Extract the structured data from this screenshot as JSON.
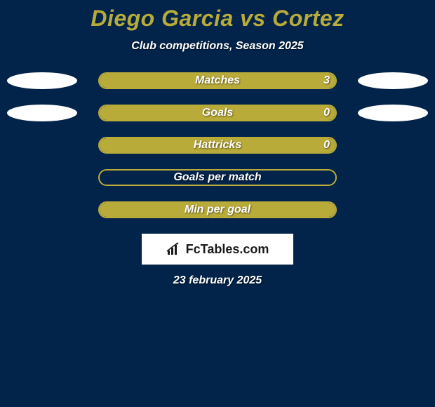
{
  "colors": {
    "background": "#02244a",
    "title": "#b9ab39",
    "text_white": "#ffffff",
    "bar_fill": "#b9ab39",
    "bar_border": "#b9ab39",
    "ellipse": "#ffffff",
    "logo_bg": "#ffffff",
    "logo_text": "#1a1a1a"
  },
  "title": "Diego Garcia vs Cortez",
  "subtitle": "Club competitions, Season 2025",
  "date": "23 february 2025",
  "logo": {
    "text_bold": "Fc",
    "text_rest": "Tables.com"
  },
  "layout": {
    "bar_track_width": 340,
    "bar_track_height": 24,
    "ellipse_width": 100,
    "ellipse_height": 24,
    "row_gap": 22
  },
  "rows": [
    {
      "label": "Matches",
      "left_value": "",
      "right_value": "3",
      "show_left_ellipse": true,
      "show_right_ellipse": true,
      "fill_left_pct": 0,
      "fill_right_pct": 100
    },
    {
      "label": "Goals",
      "left_value": "",
      "right_value": "0",
      "show_left_ellipse": true,
      "show_right_ellipse": true,
      "fill_left_pct": 0,
      "fill_right_pct": 100
    },
    {
      "label": "Hattricks",
      "left_value": "",
      "right_value": "0",
      "show_left_ellipse": false,
      "show_right_ellipse": false,
      "fill_left_pct": 0,
      "fill_right_pct": 100
    },
    {
      "label": "Goals per match",
      "left_value": "",
      "right_value": "",
      "show_left_ellipse": false,
      "show_right_ellipse": false,
      "fill_left_pct": 0,
      "fill_right_pct": 0
    },
    {
      "label": "Min per goal",
      "left_value": "",
      "right_value": "",
      "show_left_ellipse": false,
      "show_right_ellipse": false,
      "fill_left_pct": 0,
      "fill_right_pct": 100
    }
  ]
}
